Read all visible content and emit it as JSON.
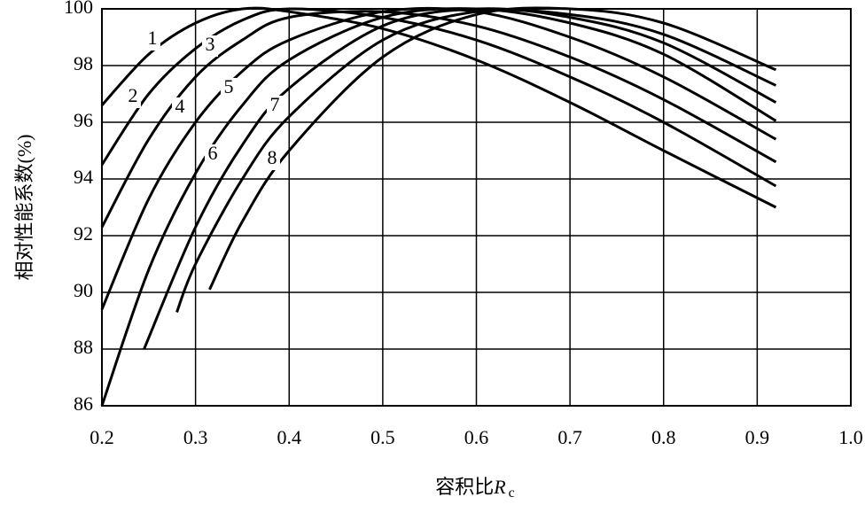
{
  "chart_data": {
    "type": "line",
    "ylabel": "相对性能系数(%)",
    "xlabel": "容积比",
    "xlabel_symbol": "R",
    "xlabel_subscript": "c",
    "xlim": [
      0.2,
      1.0
    ],
    "xticks": [
      0.2,
      0.3,
      0.4,
      0.5,
      0.6,
      0.7,
      0.8,
      0.9,
      {
        "value": 1.0,
        "label": "1.0"
      }
    ],
    "ylim": [
      86,
      100
    ],
    "yticks": [
      86,
      88,
      90,
      92,
      94,
      96,
      98,
      100
    ],
    "grid": true,
    "series": [
      {
        "name": "1",
        "color": "#000000",
        "x": [
          0.2,
          0.25,
          0.3,
          0.35,
          0.4,
          0.5,
          0.6,
          0.7,
          0.8,
          0.92
        ],
        "values": [
          96.6,
          98.4,
          99.5,
          100,
          99.9,
          99.3,
          98.2,
          96.7,
          95.0,
          93.0
        ]
      },
      {
        "name": "2",
        "color": "#000000",
        "x": [
          0.2,
          0.25,
          0.3,
          0.35,
          0.4,
          0.5,
          0.6,
          0.7,
          0.8,
          0.92
        ],
        "values": [
          94.5,
          97.0,
          98.6,
          99.6,
          100,
          99.7,
          98.9,
          97.6,
          96.0,
          93.75
        ]
      },
      {
        "name": "3",
        "color": "#000000",
        "x": [
          0.2,
          0.25,
          0.3,
          0.35,
          0.4,
          0.5,
          0.6,
          0.7,
          0.8,
          0.92
        ],
        "values": [
          92.3,
          95.4,
          97.6,
          98.9,
          99.7,
          99.9,
          99.4,
          98.3,
          96.8,
          94.6
        ]
      },
      {
        "name": "4",
        "color": "#000000",
        "x": [
          0.2,
          0.25,
          0.3,
          0.35,
          0.4,
          0.5,
          0.6,
          0.7,
          0.8,
          0.92
        ],
        "values": [
          89.4,
          93.3,
          96.0,
          97.8,
          98.9,
          99.9,
          99.9,
          99.0,
          97.6,
          95.4
        ]
      },
      {
        "name": "5",
        "color": "#000000",
        "x": [
          0.2,
          0.25,
          0.3,
          0.35,
          0.4,
          0.5,
          0.6,
          0.7,
          0.8,
          0.92
        ],
        "values": [
          86,
          90.8,
          94.2,
          96.6,
          98.2,
          99.7,
          100,
          99.5,
          98.4,
          96.05
        ]
      },
      {
        "name": "6",
        "color": "#000000",
        "x": [
          0.245,
          0.3,
          0.35,
          0.4,
          0.5,
          0.6,
          0.7,
          0.8,
          0.92
        ],
        "values": [
          88.0,
          92.3,
          95.2,
          97.2,
          99.4,
          100,
          99.7,
          98.8,
          96.7
        ]
      },
      {
        "name": "7",
        "color": "#000000",
        "x": [
          0.28,
          0.3,
          0.35,
          0.4,
          0.5,
          0.6,
          0.7,
          0.8,
          0.92
        ],
        "values": [
          89.3,
          91.0,
          94.0,
          96.2,
          98.9,
          99.9,
          99.8,
          99.1,
          97.3
        ]
      },
      {
        "name": "8",
        "color": "#000000",
        "x": [
          0.315,
          0.35,
          0.4,
          0.5,
          0.6,
          0.7,
          0.8,
          0.92
        ],
        "values": [
          90.1,
          92.5,
          95.0,
          98.3,
          99.8,
          100,
          99.5,
          97.85
        ]
      }
    ]
  }
}
